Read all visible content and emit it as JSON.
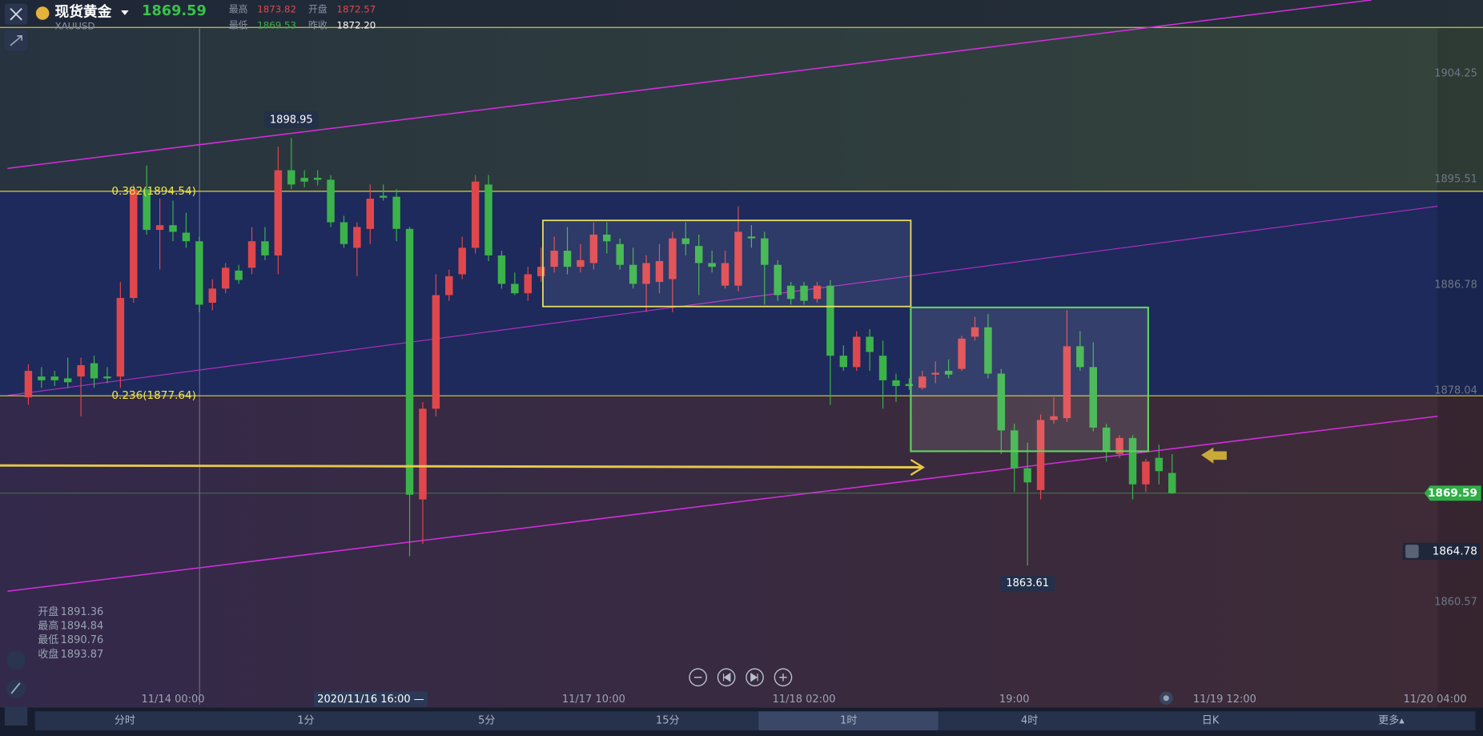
{
  "header": {
    "title": "现货黄金",
    "symbol": "XAUUSD",
    "stats": [
      {
        "label": "最高",
        "value": "1873.82"
      },
      {
        "label": "开盘",
        "value": "1872.57"
      },
      {
        "label": "最低",
        "value": "1869.53"
      },
      {
        "label": "昨收",
        "value": "1872.20"
      }
    ]
  },
  "crosshair": {
    "label": "2020/11/16 16:00 —",
    "info": [
      {
        "label": "开盘",
        "value": "1891.36"
      },
      {
        "label": "最高",
        "value": "1894.84"
      },
      {
        "label": "最低",
        "value": "1890.76"
      },
      {
        "label": "收盘",
        "value": "1893.87"
      }
    ]
  },
  "tabs": [
    "分时",
    "1分",
    "5分",
    "15分",
    "1时",
    "4时",
    "日K",
    "更多▴"
  ],
  "chart_data": {
    "type": "candlestick",
    "up_color": "#e0474c",
    "down_color": "#3bb34a",
    "grid": false,
    "ylim": [
      1852.1,
      1910.35
    ],
    "yticks": [
      1904.25,
      1895.51,
      1886.78,
      1878.04,
      1860.57
    ],
    "last_price": 1869.59,
    "alert_price": 1864.78,
    "fib_levels": [
      {
        "label": "0.382(1894.54)",
        "value": 1894.54
      },
      {
        "label": "0.236(1877.64)",
        "value": 1877.64
      }
    ],
    "categories": [
      null,
      null,
      null,
      null,
      null,
      null,
      null,
      null,
      null,
      null,
      null,
      "11/14 00:00",
      null,
      null,
      null,
      null,
      null,
      null,
      null,
      null,
      null,
      null,
      null,
      null,
      null,
      null,
      null,
      null,
      null,
      null,
      null,
      null,
      null,
      null,
      null,
      null,
      null,
      null,
      null,
      null,
      null,
      null,
      null,
      "11/17 10:00",
      null,
      null,
      null,
      null,
      null,
      null,
      null,
      null,
      null,
      null,
      null,
      null,
      null,
      null,
      null,
      "11/18 02:00",
      null,
      null,
      null,
      null,
      null,
      null,
      null,
      null,
      null,
      null,
      null,
      null,
      null,
      null,
      null,
      "19:00",
      null,
      null,
      null,
      null,
      null,
      null,
      null,
      null,
      null,
      null,
      null,
      null,
      null,
      null,
      null,
      "11/19 12:00",
      null,
      null,
      null,
      null,
      null,
      null,
      null,
      null,
      null,
      null,
      null,
      null,
      null,
      null,
      null,
      "11/20 04:00"
    ],
    "open": [
      1877.51,
      1879.23,
      1879.23,
      1879.08,
      1879.23,
      1880.33,
      1879.23,
      1879.23,
      1885.72,
      1894.71,
      1891.35,
      1891.74,
      1891.12,
      1890.41,
      1885.33,
      1886.5,
      1887.99,
      1888.22,
      1890.41,
      1889.24,
      1896.28,
      1895.65,
      1895.65,
      1895.49,
      1891.98,
      1889.87,
      1891.43,
      1894.17,
      1894.09,
      1891.43,
      1869.07,
      1876.57,
      1885.96,
      1887.68,
      1889.87,
      1895.1,
      1889.24,
      1886.89,
      1886.11,
      1887.52,
      1888.3,
      1889.63,
      1888.3,
      1888.61,
      1890.96,
      1890.18,
      1888.46,
      1886.89,
      1887.05,
      1887.28,
      1890.65,
      1890.02,
      1888.61,
      1886.74,
      1886.74,
      1890.8,
      1890.65,
      1888.46,
      1886.74,
      1886.74,
      1885.64,
      1886.74,
      1880.95,
      1880.01,
      1882.52,
      1880.95,
      1878.92,
      1878.61,
      1878.29,
      1879.39,
      1879.7,
      1879.86,
      1882.52,
      1883.3,
      1879.47,
      1874.78,
      1871.65,
      1869.85,
      1875.64,
      1875.79,
      1881.73,
      1880.01,
      1875.01,
      1872.82,
      1874.15,
      1870.32,
      1872.51,
      1871.26,
      null,
      null,
      null,
      null,
      null,
      null,
      null,
      null,
      null,
      null,
      null,
      null,
      null,
      null,
      null,
      null,
      null,
      null,
      null,
      null
    ],
    "high": [
      1880.25,
      1880.01,
      1879.7,
      1880.8,
      1880.8,
      1880.95,
      1880.01,
      1887.05,
      1895.1,
      1896.67,
      1893.93,
      1893.77,
      1892.76,
      1890.8,
      1887.28,
      1888.61,
      1888.46,
      1891.59,
      1891.59,
      1898.23,
      1898.95,
      1896.28,
      1896.28,
      1895.89,
      1892.52,
      1891.98,
      1895.1,
      1895.1,
      1894.71,
      1891.59,
      1877.12,
      1887.68,
      1888.07,
      1890.8,
      1895.89,
      1895.89,
      1889.63,
      1887.83,
      1888.3,
      1889.87,
      1890.8,
      1891.59,
      1890.18,
      1891.98,
      1891.98,
      1890.65,
      1889.87,
      1889.24,
      1890.18,
      1891.19,
      1891.98,
      1890.96,
      1889.63,
      1889.63,
      1893.31,
      1891.74,
      1891.19,
      1888.85,
      1887.05,
      1887.05,
      1887.05,
      1887.21,
      1881.81,
      1882.98,
      1883.14,
      1882.2,
      1879.47,
      1879.08,
      1879.7,
      1880.48,
      1880.64,
      1882.59,
      1884.16,
      1884.39,
      1879.86,
      1875.32,
      1873.76,
      1876.1,
      1877.51,
      1884.71,
      1882.98,
      1882.05,
      1875.32,
      1874.38,
      1874.38,
      1872.43,
      1873.6,
      1872.82,
      null,
      null,
      null,
      null,
      null,
      null,
      null,
      null,
      null,
      null,
      null,
      null,
      null,
      null,
      null,
      null,
      null,
      null,
      null,
      null
    ],
    "low": [
      1876.89,
      1878.29,
      1878.45,
      1878.29,
      1875.95,
      1878.29,
      1878.68,
      1878.29,
      1885.33,
      1890.96,
      1888.07,
      1890.41,
      1889.87,
      1884.55,
      1884.7,
      1886.11,
      1886.89,
      1887.68,
      1888.85,
      1887.68,
      1894.71,
      1894.87,
      1895.03,
      1891.59,
      1889.87,
      1887.52,
      1890.18,
      1893.77,
      1890.41,
      1864.38,
      1865.39,
      1875.95,
      1885.49,
      1887.28,
      1889.4,
      1888.77,
      1886.5,
      1885.96,
      1885.49,
      1887.05,
      1887.83,
      1887.68,
      1887.83,
      1888.07,
      1889.4,
      1888.07,
      1886.5,
      1884.55,
      1886.11,
      1884.55,
      1889.24,
      1885.96,
      1887.83,
      1886.5,
      1886.27,
      1889.87,
      1885.17,
      1885.49,
      1885.17,
      1885.17,
      1885.33,
      1876.89,
      1879.7,
      1879.7,
      1879.7,
      1876.57,
      1877.12,
      1878.14,
      1878.14,
      1878.68,
      1879.08,
      1879.7,
      1882.2,
      1879.08,
      1872.82,
      1869.69,
      1863.61,
      1869.07,
      1875.32,
      1875.48,
      1879.7,
      1874.7,
      1872.2,
      1872.51,
      1869.07,
      1869.69,
      1870.32,
      1869.53,
      null,
      null,
      null,
      null,
      null,
      null,
      null,
      null,
      null,
      null,
      null,
      null,
      null,
      null,
      null,
      null,
      null,
      null,
      null,
      null
    ],
    "close": [
      1879.7,
      1878.92,
      1878.92,
      1878.76,
      1880.17,
      1879.08,
      1879.08,
      1885.72,
      1894.71,
      1891.35,
      1891.74,
      1891.19,
      1890.41,
      1885.17,
      1886.5,
      1888.22,
      1887.21,
      1890.41,
      1889.24,
      1896.28,
      1895.1,
      1895.34,
      1895.49,
      1891.98,
      1890.18,
      1891.59,
      1893.93,
      1894.01,
      1891.43,
      1869.46,
      1876.57,
      1885.96,
      1887.52,
      1889.87,
      1895.34,
      1889.24,
      1886.89,
      1886.11,
      1887.68,
      1888.3,
      1889.63,
      1888.3,
      1888.85,
      1890.96,
      1890.41,
      1888.46,
      1886.89,
      1888.61,
      1888.77,
      1890.65,
      1890.18,
      1888.61,
      1888.3,
      1888.61,
      1891.19,
      1890.65,
      1888.46,
      1885.96,
      1885.64,
      1885.49,
      1886.74,
      1880.95,
      1880.01,
      1882.52,
      1881.26,
      1878.92,
      1878.45,
      1878.45,
      1879.23,
      1879.54,
      1879.39,
      1882.36,
      1883.3,
      1879.47,
      1874.78,
      1871.65,
      1870.48,
      1875.64,
      1875.95,
      1881.73,
      1880.01,
      1875.01,
      1872.98,
      1874.15,
      1870.32,
      1872.2,
      1871.41,
      1869.59,
      null,
      null,
      null,
      null,
      null,
      null,
      null,
      null,
      null,
      null,
      null,
      null,
      null,
      null,
      null,
      null,
      null,
      null,
      null,
      null
    ]
  }
}
